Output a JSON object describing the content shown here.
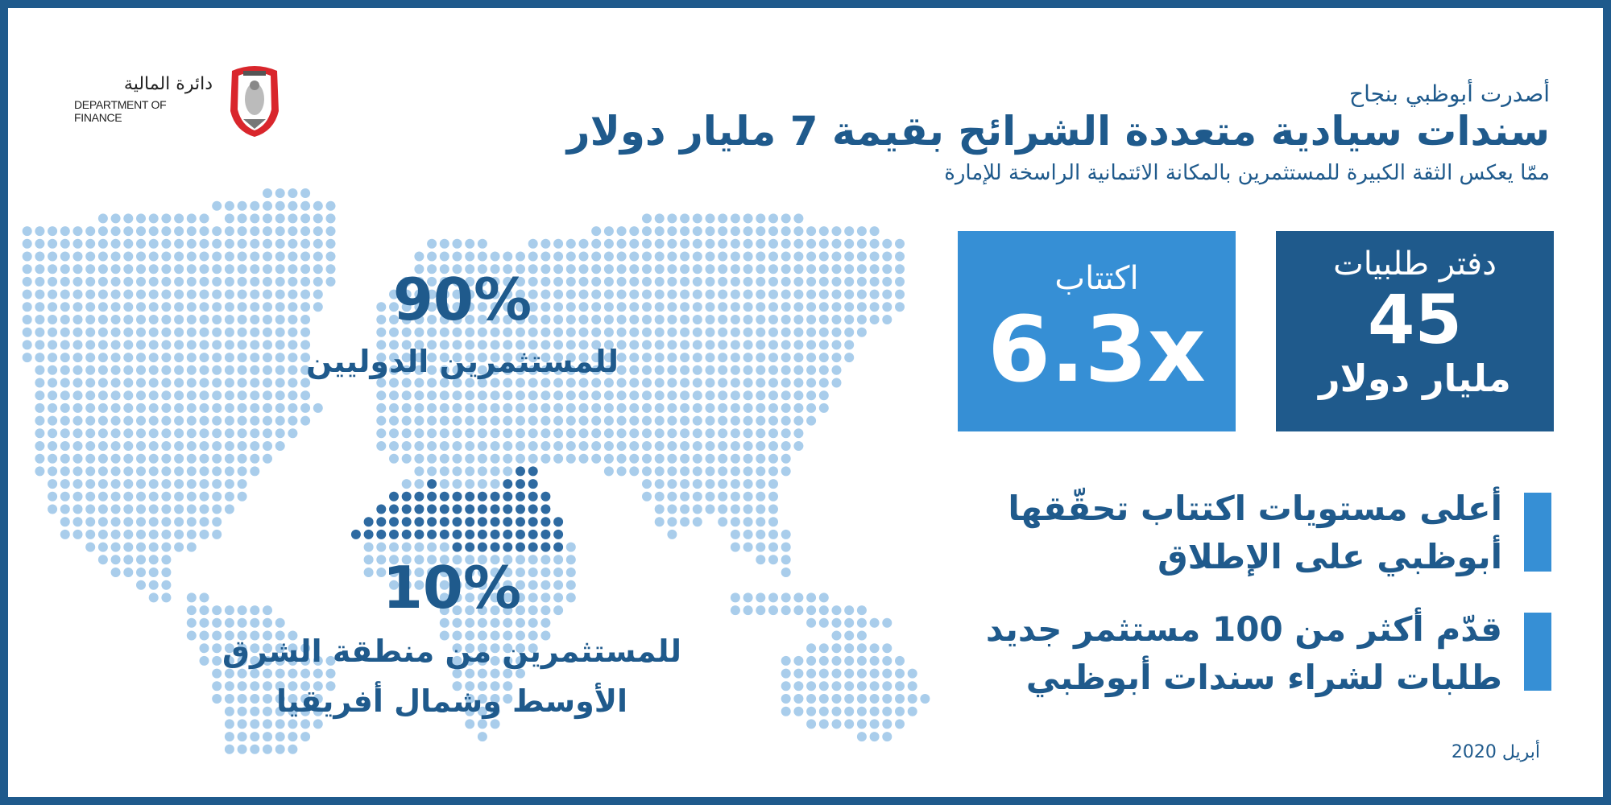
{
  "logo": {
    "arabic": "دائرة المالية",
    "english": "DEPARTMENT OF FINANCE"
  },
  "header": {
    "kicker": "أصدرت أبوظبي بنجاح",
    "title": "سندات سيادية متعددة الشرائح بقيمة 7 مليار دولار",
    "subtitle": "ممّا يعكس الثقة الكبيرة للمستثمرين بالمكانة الائتمانية الراسخة للإمارة"
  },
  "stats": {
    "subscription": {
      "label": "اكتتاب",
      "value": "6.3x"
    },
    "order_book": {
      "label": "دفتر طلبيات",
      "value": "45",
      "unit": "مليار دولار"
    }
  },
  "highlights": [
    {
      "line1": "أعلى مستويات اكتتاب تحقّقها",
      "line2": "أبوظبي على الإطلاق"
    },
    {
      "line1": "قدّم أكثر من 100 مستثمر جديد",
      "line2": "طلبات لشراء سندات أبوظبي"
    }
  ],
  "investors": {
    "international": {
      "percent": "90%",
      "label": "للمستثمرين الدوليين"
    },
    "mena": {
      "percent": "10%",
      "line1": "للمستثمرين من منطقة الشرق",
      "line2": "الأوسط وشمال أفريقيا"
    }
  },
  "date": "أبريل 2020",
  "colors": {
    "dark_blue": "#1f5a8c",
    "light_blue": "#368fd5",
    "map_dot": "#a9cdeb",
    "mena_dot": "#2e6aa1",
    "emblem_red": "#d9262c"
  }
}
